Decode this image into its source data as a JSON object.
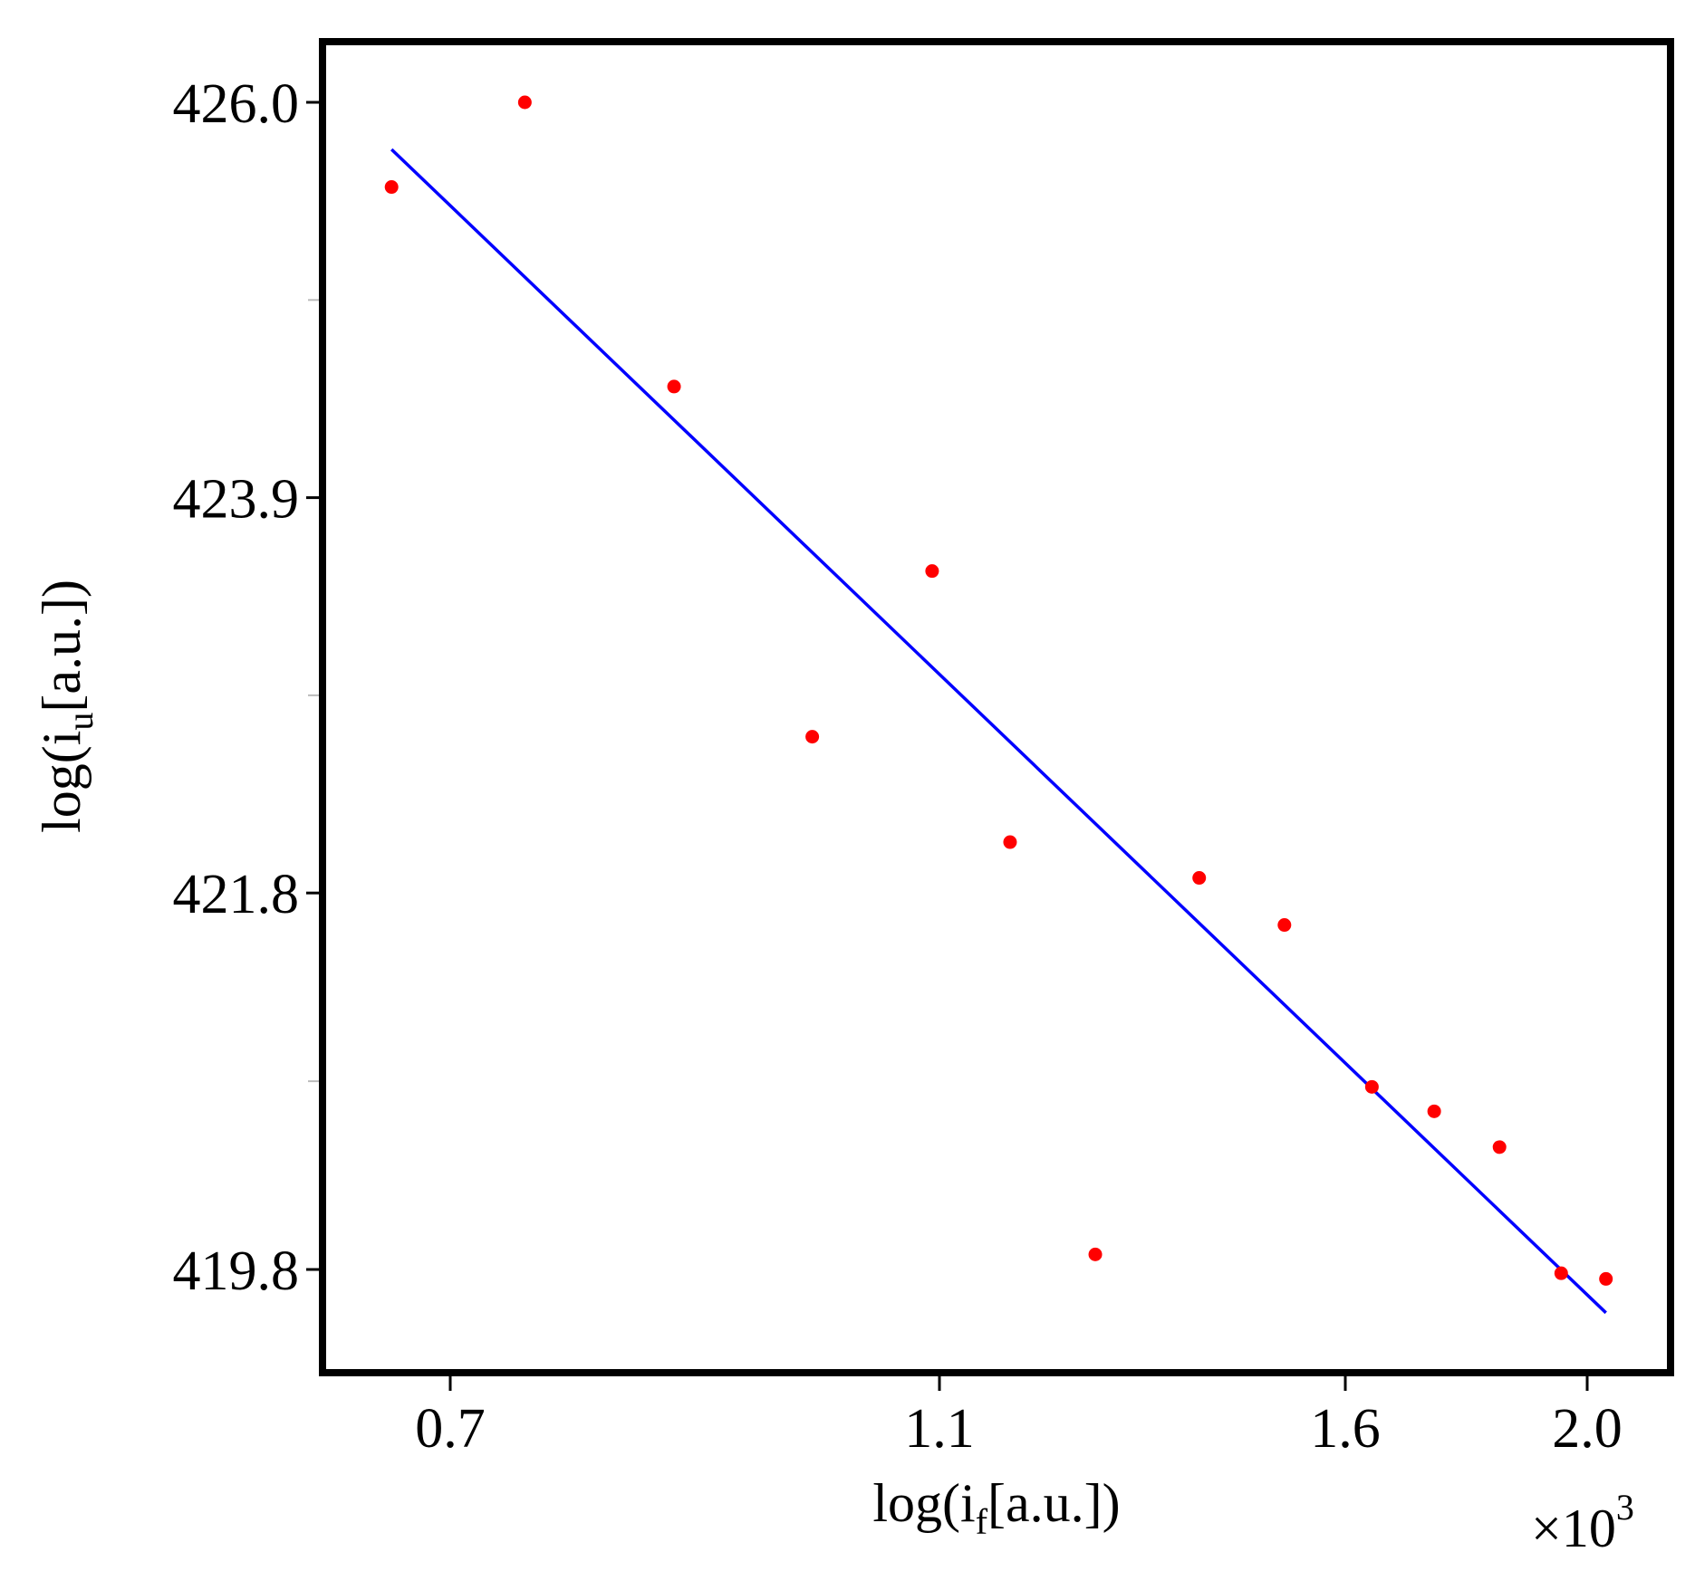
{
  "chart_data": {
    "type": "scatter",
    "xlabel": {
      "base": "log(i",
      "sub": "f",
      "tail": "[a.u.])"
    },
    "ylabel": {
      "base": "log(i",
      "sub": "u",
      "tail": "[a.u.])"
    },
    "x_multiplier": {
      "prefix": "×10",
      "exp": "3"
    },
    "x_ticks": [
      {
        "value": 0.7,
        "label": "0.7"
      },
      {
        "value": 1.1,
        "label": "1.1"
      },
      {
        "value": 1.6,
        "label": "1.6"
      },
      {
        "value": 2.0,
        "label": "2.0"
      }
    ],
    "y_ticks": [
      {
        "value": 426.0,
        "label": "426.0"
      },
      {
        "value": 423.9,
        "label": "423.9"
      },
      {
        "value": 421.8,
        "label": "421.8"
      },
      {
        "value": 419.8,
        "label": "419.8"
      }
    ],
    "points": [
      {
        "x": 0.652,
        "y": 425.55
      },
      {
        "x": 0.761,
        "y": 426.0
      },
      {
        "x": 0.883,
        "y": 424.49
      },
      {
        "x": 0.996,
        "y": 422.63
      },
      {
        "x": 1.094,
        "y": 423.51
      },
      {
        "x": 1.187,
        "y": 422.07
      },
      {
        "x": 1.292,
        "y": 419.88
      },
      {
        "x": 1.42,
        "y": 421.88
      },
      {
        "x": 1.525,
        "y": 421.63
      },
      {
        "x": 1.644,
        "y": 420.77
      },
      {
        "x": 1.747,
        "y": 420.64
      },
      {
        "x": 1.855,
        "y": 420.45
      },
      {
        "x": 1.957,
        "y": 419.78
      },
      {
        "x": 2.031,
        "y": 419.75
      }
    ],
    "fit_line": {
      "x": [
        0.652,
        2.031
      ],
      "y": [
        425.75,
        419.57
      ]
    },
    "colors": {
      "points": "#ff0000",
      "line": "#0000ff",
      "frame": "#000000"
    }
  }
}
